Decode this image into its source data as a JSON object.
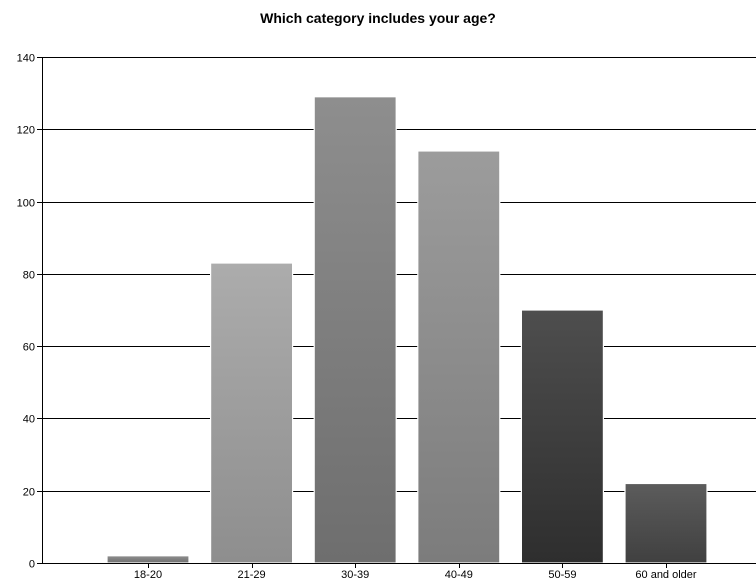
{
  "chart_data": {
    "type": "bar",
    "title": "Which category includes your age?",
    "xlabel": "",
    "ylabel": "",
    "categories": [
      "18-20",
      "21-29",
      "30-39",
      "40-49",
      "50-59",
      "60 and older"
    ],
    "values": [
      2,
      83,
      129,
      114,
      70,
      22
    ],
    "ylim": [
      0,
      140
    ],
    "yticks": [
      0,
      20,
      40,
      60,
      80,
      100,
      120,
      140
    ],
    "ytick_labels": [
      "0",
      "20",
      "40",
      "60",
      "80",
      "100",
      "120",
      "140"
    ],
    "grid": true,
    "legend": "none",
    "bar_colors": [
      [
        "#8f8f8f",
        "#6f6f6f"
      ],
      [
        "#acacac",
        "#8e8e8e"
      ],
      [
        "#8e8e8e",
        "#6e6e6e"
      ],
      [
        "#9c9c9c",
        "#7c7c7c"
      ],
      [
        "#4e4e4e",
        "#2e2e2e"
      ],
      [
        "#5c5c5c",
        "#404040"
      ]
    ]
  }
}
